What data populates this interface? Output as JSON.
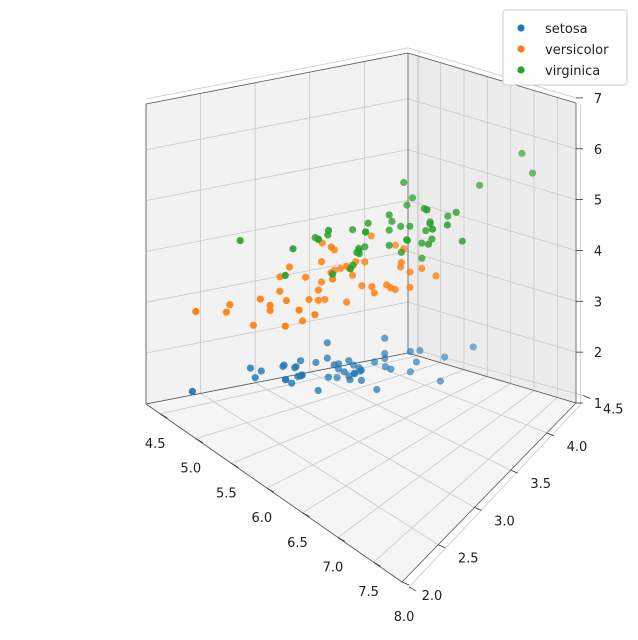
{
  "chart_data": {
    "type": "scatter",
    "projection": "3d",
    "title": "",
    "xlabel": "",
    "ylabel": "",
    "zlabel": "",
    "xlim": [
      4.3,
      7.9
    ],
    "ylim": [
      2.0,
      4.4
    ],
    "zlim": [
      1.0,
      6.9
    ],
    "xticks": [
      "4.5",
      "5.0",
      "5.5",
      "6.0",
      "6.5",
      "7.0",
      "7.5",
      "8.0"
    ],
    "yticks": [
      "2.0",
      "2.5",
      "3.0",
      "3.5",
      "4.0",
      "4.5"
    ],
    "zticks": [
      "1",
      "2",
      "3",
      "4",
      "5",
      "6",
      "7"
    ],
    "legend_position": "top-right",
    "grid": true,
    "series": [
      {
        "name": "setosa",
        "color": "#1f77b4",
        "points": [
          [
            5.1,
            3.5,
            1.4
          ],
          [
            4.9,
            3.0,
            1.4
          ],
          [
            4.7,
            3.2,
            1.3
          ],
          [
            4.6,
            3.1,
            1.5
          ],
          [
            5.0,
            3.6,
            1.4
          ],
          [
            5.4,
            3.9,
            1.7
          ],
          [
            4.6,
            3.4,
            1.4
          ],
          [
            5.0,
            3.4,
            1.5
          ],
          [
            4.4,
            2.9,
            1.4
          ],
          [
            4.9,
            3.1,
            1.5
          ],
          [
            5.4,
            3.7,
            1.5
          ],
          [
            4.8,
            3.4,
            1.6
          ],
          [
            4.8,
            3.0,
            1.4
          ],
          [
            4.3,
            3.0,
            1.1
          ],
          [
            5.8,
            4.0,
            1.2
          ],
          [
            5.7,
            4.4,
            1.5
          ],
          [
            5.4,
            3.9,
            1.3
          ],
          [
            5.1,
            3.5,
            1.4
          ],
          [
            5.7,
            3.8,
            1.7
          ],
          [
            5.1,
            3.8,
            1.5
          ],
          [
            5.4,
            3.4,
            1.7
          ],
          [
            5.1,
            3.7,
            1.5
          ],
          [
            4.6,
            3.6,
            1.0
          ],
          [
            5.1,
            3.3,
            1.7
          ],
          [
            4.8,
            3.4,
            1.9
          ],
          [
            5.0,
            3.0,
            1.6
          ],
          [
            5.0,
            3.4,
            1.6
          ],
          [
            5.2,
            3.5,
            1.5
          ],
          [
            5.2,
            3.4,
            1.4
          ],
          [
            4.7,
            3.2,
            1.6
          ],
          [
            4.8,
            3.1,
            1.6
          ],
          [
            5.4,
            3.4,
            1.5
          ],
          [
            5.2,
            4.1,
            1.5
          ],
          [
            5.5,
            4.2,
            1.4
          ],
          [
            4.9,
            3.1,
            1.5
          ],
          [
            5.0,
            3.2,
            1.2
          ],
          [
            5.5,
            3.5,
            1.3
          ],
          [
            4.9,
            3.6,
            1.4
          ],
          [
            4.4,
            3.0,
            1.3
          ],
          [
            5.1,
            3.4,
            1.5
          ],
          [
            5.0,
            3.5,
            1.3
          ],
          [
            4.5,
            2.3,
            1.3
          ],
          [
            4.4,
            3.2,
            1.3
          ],
          [
            5.0,
            3.5,
            1.6
          ],
          [
            5.1,
            3.8,
            1.9
          ],
          [
            4.8,
            3.0,
            1.4
          ],
          [
            5.1,
            3.8,
            1.6
          ],
          [
            4.6,
            3.2,
            1.4
          ],
          [
            5.3,
            3.7,
            1.5
          ],
          [
            5.0,
            3.3,
            1.4
          ]
        ]
      },
      {
        "name": "versicolor",
        "color": "#ff7f0e",
        "points": [
          [
            7.0,
            3.2,
            4.7
          ],
          [
            6.4,
            3.2,
            4.5
          ],
          [
            6.9,
            3.1,
            4.9
          ],
          [
            5.5,
            2.3,
            4.0
          ],
          [
            6.5,
            2.8,
            4.6
          ],
          [
            5.7,
            2.8,
            4.5
          ],
          [
            6.3,
            3.3,
            4.7
          ],
          [
            4.9,
            2.4,
            3.3
          ],
          [
            6.6,
            2.9,
            4.6
          ],
          [
            5.2,
            2.7,
            3.9
          ],
          [
            5.0,
            2.0,
            3.5
          ],
          [
            5.9,
            3.0,
            4.2
          ],
          [
            6.0,
            2.2,
            4.0
          ],
          [
            6.1,
            2.9,
            4.7
          ],
          [
            5.6,
            2.9,
            3.6
          ],
          [
            6.7,
            3.1,
            4.4
          ],
          [
            5.6,
            3.0,
            4.5
          ],
          [
            5.8,
            2.7,
            4.1
          ],
          [
            6.2,
            2.2,
            4.5
          ],
          [
            5.6,
            2.5,
            3.9
          ],
          [
            5.9,
            3.2,
            4.8
          ],
          [
            6.1,
            2.8,
            4.0
          ],
          [
            6.3,
            2.5,
            4.9
          ],
          [
            6.1,
            2.8,
            4.7
          ],
          [
            6.4,
            2.9,
            4.3
          ],
          [
            6.6,
            3.0,
            4.4
          ],
          [
            6.8,
            2.8,
            4.8
          ],
          [
            6.7,
            3.0,
            5.0
          ],
          [
            6.0,
            2.9,
            4.5
          ],
          [
            5.7,
            2.6,
            3.5
          ],
          [
            5.5,
            2.4,
            3.8
          ],
          [
            5.5,
            2.4,
            3.7
          ],
          [
            5.8,
            2.7,
            3.9
          ],
          [
            6.0,
            2.7,
            5.1
          ],
          [
            5.4,
            3.0,
            4.5
          ],
          [
            6.0,
            3.4,
            4.5
          ],
          [
            6.7,
            3.1,
            4.7
          ],
          [
            6.3,
            2.3,
            4.4
          ],
          [
            5.6,
            3.0,
            4.1
          ],
          [
            5.5,
            2.5,
            4.0
          ],
          [
            5.5,
            2.6,
            4.4
          ],
          [
            6.1,
            3.0,
            4.6
          ],
          [
            5.8,
            2.6,
            4.0
          ],
          [
            5.0,
            2.3,
            3.3
          ],
          [
            5.6,
            2.7,
            4.2
          ],
          [
            5.7,
            3.0,
            4.2
          ],
          [
            5.7,
            2.9,
            4.2
          ],
          [
            6.2,
            2.9,
            4.3
          ],
          [
            5.1,
            2.5,
            3.0
          ],
          [
            5.7,
            2.8,
            4.1
          ]
        ]
      },
      {
        "name": "virginica",
        "color": "#2ca02c",
        "points": [
          [
            6.3,
            3.3,
            6.0
          ],
          [
            5.8,
            2.7,
            5.1
          ],
          [
            7.1,
            3.0,
            5.9
          ],
          [
            6.3,
            2.9,
            5.6
          ],
          [
            6.5,
            3.0,
            5.8
          ],
          [
            7.6,
            3.0,
            6.6
          ],
          [
            4.9,
            2.5,
            4.5
          ],
          [
            7.3,
            2.9,
            6.3
          ],
          [
            6.7,
            2.5,
            5.8
          ],
          [
            7.2,
            3.6,
            6.1
          ],
          [
            6.5,
            3.2,
            5.1
          ],
          [
            6.4,
            2.7,
            5.3
          ],
          [
            6.8,
            3.0,
            5.5
          ],
          [
            5.7,
            2.5,
            5.0
          ],
          [
            5.8,
            2.8,
            5.1
          ],
          [
            6.4,
            3.2,
            5.3
          ],
          [
            6.5,
            3.0,
            5.5
          ],
          [
            7.7,
            3.8,
            6.7
          ],
          [
            7.7,
            2.6,
            6.9
          ],
          [
            6.0,
            2.2,
            5.0
          ],
          [
            6.9,
            3.2,
            5.7
          ],
          [
            5.6,
            2.8,
            4.9
          ],
          [
            7.7,
            2.8,
            6.7
          ],
          [
            6.3,
            2.7,
            4.9
          ],
          [
            6.7,
            3.3,
            5.7
          ],
          [
            7.2,
            3.2,
            6.0
          ],
          [
            6.2,
            2.8,
            4.8
          ],
          [
            6.1,
            3.0,
            4.9
          ],
          [
            6.4,
            2.8,
            5.6
          ],
          [
            7.2,
            3.0,
            5.8
          ],
          [
            7.4,
            2.8,
            6.1
          ],
          [
            7.9,
            3.8,
            6.4
          ],
          [
            6.4,
            2.8,
            5.6
          ],
          [
            6.3,
            2.8,
            5.1
          ],
          [
            6.1,
            2.6,
            5.6
          ],
          [
            7.7,
            3.0,
            6.1
          ],
          [
            6.3,
            3.4,
            5.6
          ],
          [
            6.4,
            3.1,
            5.5
          ],
          [
            6.0,
            3.0,
            4.8
          ],
          [
            6.9,
            3.1,
            5.4
          ],
          [
            6.7,
            3.1,
            5.6
          ],
          [
            6.9,
            3.1,
            5.1
          ],
          [
            5.8,
            2.7,
            5.1
          ],
          [
            6.8,
            3.2,
            5.9
          ],
          [
            6.7,
            3.3,
            5.7
          ],
          [
            6.7,
            3.0,
            5.2
          ],
          [
            6.3,
            2.5,
            5.0
          ],
          [
            6.5,
            3.0,
            5.2
          ],
          [
            6.2,
            3.4,
            5.4
          ],
          [
            5.9,
            3.0,
            5.1
          ]
        ]
      }
    ]
  }
}
